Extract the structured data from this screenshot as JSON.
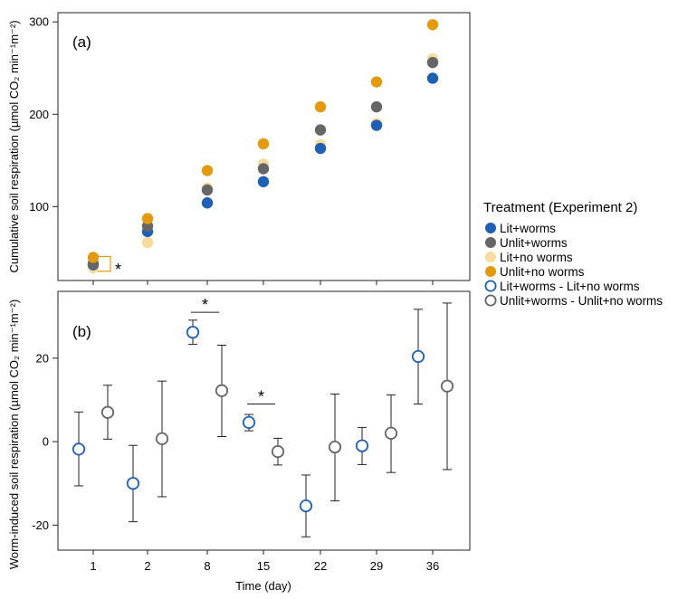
{
  "colors": {
    "lit_worms": "#1f5fb4",
    "unlit_worms": "#666666",
    "lit_no_worms": "#f7dca0",
    "unlit_no_worms": "#e39a0f",
    "diff_lit": "#1f5fb4",
    "diff_unlit": "#666666",
    "axis": "#222222"
  },
  "legend": {
    "title": "Treatment (Experiment 2)",
    "items": [
      {
        "key": "lit_worms",
        "label": "Lit+worms",
        "marker": "filled"
      },
      {
        "key": "unlit_worms",
        "label": "Unlit+worms",
        "marker": "filled"
      },
      {
        "key": "lit_no_worms",
        "label": "Lit+no worms",
        "marker": "filled"
      },
      {
        "key": "unlit_no_worms",
        "label": "Unlit+no worms",
        "marker": "filled"
      },
      {
        "key": "diff_lit",
        "label": "Lit+worms - Lit+no worms",
        "marker": "open"
      },
      {
        "key": "diff_unlit",
        "label": "Unlit+worms - Unlit+no worms",
        "marker": "open"
      }
    ]
  },
  "chart_data": [
    {
      "type": "scatter",
      "panel": "(a)",
      "ylabel": "Cumulative soil respiration (µmol CO₂ min⁻¹m⁻²)",
      "xlabel": "",
      "categories": [
        "1",
        "2",
        "8",
        "15",
        "22",
        "29",
        "36"
      ],
      "ylim": [
        20,
        310
      ],
      "yticks": [
        100,
        200,
        300
      ],
      "series": [
        {
          "key": "lit_worms",
          "name": "Lit+worms",
          "values": [
            37,
            73,
            104,
            127,
            163,
            188,
            239
          ]
        },
        {
          "key": "unlit_worms",
          "name": "Unlit+worms",
          "values": [
            38,
            79,
            118,
            141,
            183,
            208,
            256
          ]
        },
        {
          "key": "lit_no_worms",
          "name": "Lit+no worms",
          "values": [
            34,
            61,
            120,
            146,
            167,
            190,
            260
          ]
        },
        {
          "key": "unlit_no_worms",
          "name": "Unlit+no worms",
          "values": [
            45,
            87,
            139,
            168,
            208,
            235,
            297
          ]
        }
      ],
      "annotations": [
        {
          "category": "1",
          "text": "*",
          "note": "highlight box around day-1 points"
        }
      ]
    },
    {
      "type": "scatter",
      "panel": "(b)",
      "ylabel": "Worm-induced soil respiration (µmol CO₂ min⁻¹m⁻²)",
      "xlabel": "Time (day)",
      "categories": [
        "1",
        "2",
        "8",
        "15",
        "22",
        "29",
        "36"
      ],
      "ylim": [
        -26,
        36
      ],
      "yticks": [
        -20,
        0,
        20
      ],
      "series": [
        {
          "key": "diff_lit",
          "name": "Lit+worms - Lit+no worms",
          "values": [
            -1.8,
            -10.0,
            26.2,
            4.6,
            -15.4,
            -1.0,
            20.4
          ],
          "err_low": [
            -10.6,
            -19.2,
            23.3,
            2.6,
            -22.8,
            -5.5,
            9.0
          ],
          "err_high": [
            7.1,
            -0.9,
            29.1,
            6.5,
            -8.0,
            3.4,
            31.7
          ]
        },
        {
          "key": "diff_unlit",
          "name": "Unlit+worms - Unlit+no worms",
          "values": [
            7.0,
            0.7,
            12.2,
            -2.4,
            -1.3,
            2.0,
            13.3
          ],
          "err_low": [
            0.6,
            -13.2,
            1.2,
            -5.6,
            -14.2,
            -7.4,
            -6.7
          ],
          "err_high": [
            13.5,
            14.5,
            23.1,
            0.8,
            11.4,
            11.2,
            33.2
          ]
        }
      ],
      "annotations": [
        {
          "category": "8",
          "text": "*"
        },
        {
          "category": "15",
          "text": "*"
        }
      ]
    }
  ]
}
